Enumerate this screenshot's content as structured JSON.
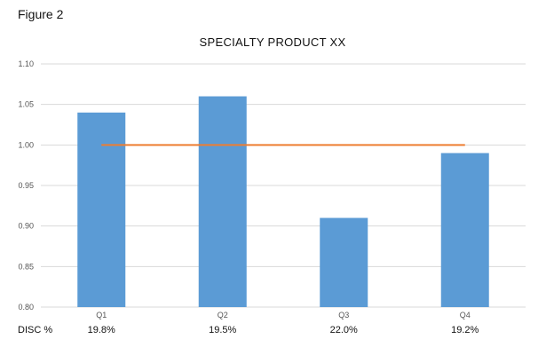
{
  "figure_label": "Figure 2",
  "disc_row": {
    "label": "DISC %",
    "values": [
      "19.8%",
      "19.5%",
      "22.0%",
      "19.2%"
    ]
  },
  "colors": {
    "bar": "#5B9BD5",
    "line": "#ED7D31",
    "grid": "#D9D9D9"
  },
  "chart_data": {
    "type": "bar",
    "title": "SPECIALTY PRODUCT XX",
    "categories": [
      "Q1",
      "Q2",
      "Q3",
      "Q4"
    ],
    "series": [
      {
        "values": [
          1.04,
          1.06,
          0.91,
          0.99
        ]
      }
    ],
    "reference_line": {
      "values": [
        1.0,
        1.0,
        1.0,
        1.0
      ]
    },
    "ylim": [
      0.8,
      1.1
    ],
    "yticks": [
      "0.80",
      "0.85",
      "0.90",
      "0.95",
      "1.00",
      "1.05",
      "1.10"
    ],
    "grid": true,
    "legend": "none"
  }
}
